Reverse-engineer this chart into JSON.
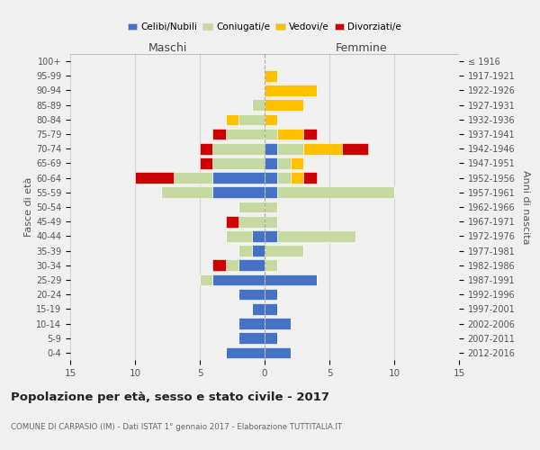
{
  "age_groups": [
    "100+",
    "95-99",
    "90-94",
    "85-89",
    "80-84",
    "75-79",
    "70-74",
    "65-69",
    "60-64",
    "55-59",
    "50-54",
    "45-49",
    "40-44",
    "35-39",
    "30-34",
    "25-29",
    "20-24",
    "15-19",
    "10-14",
    "5-9",
    "0-4"
  ],
  "birth_years": [
    "≤ 1916",
    "1917-1921",
    "1922-1926",
    "1927-1931",
    "1932-1936",
    "1937-1941",
    "1942-1946",
    "1947-1951",
    "1952-1956",
    "1957-1961",
    "1962-1966",
    "1967-1971",
    "1972-1976",
    "1977-1981",
    "1982-1986",
    "1987-1991",
    "1992-1996",
    "1997-2001",
    "2002-2006",
    "2007-2011",
    "2012-2016"
  ],
  "male": {
    "celibi": [
      0,
      0,
      0,
      0,
      0,
      0,
      0,
      0,
      4,
      4,
      0,
      0,
      1,
      1,
      2,
      4,
      2,
      1,
      2,
      2,
      3
    ],
    "coniugati": [
      0,
      0,
      0,
      1,
      2,
      3,
      4,
      4,
      3,
      4,
      2,
      2,
      2,
      1,
      1,
      1,
      0,
      0,
      0,
      0,
      0
    ],
    "vedovi": [
      0,
      0,
      0,
      0,
      1,
      0,
      0,
      0,
      0,
      0,
      0,
      0,
      0,
      0,
      0,
      0,
      0,
      0,
      0,
      0,
      0
    ],
    "divorziati": [
      0,
      0,
      0,
      0,
      0,
      1,
      1,
      1,
      3,
      0,
      0,
      1,
      0,
      0,
      1,
      0,
      0,
      0,
      0,
      0,
      0
    ]
  },
  "female": {
    "nubili": [
      0,
      0,
      0,
      0,
      0,
      0,
      1,
      1,
      1,
      1,
      0,
      0,
      1,
      0,
      0,
      4,
      1,
      1,
      2,
      1,
      2
    ],
    "coniugate": [
      0,
      0,
      0,
      0,
      0,
      1,
      2,
      1,
      1,
      9,
      1,
      1,
      6,
      3,
      1,
      0,
      0,
      0,
      0,
      0,
      0
    ],
    "vedove": [
      0,
      1,
      4,
      3,
      1,
      2,
      3,
      1,
      1,
      0,
      0,
      0,
      0,
      0,
      0,
      0,
      0,
      0,
      0,
      0,
      0
    ],
    "divorziate": [
      0,
      0,
      0,
      0,
      0,
      1,
      2,
      0,
      1,
      0,
      0,
      0,
      0,
      0,
      0,
      0,
      0,
      0,
      0,
      0,
      0
    ]
  },
  "colors": {
    "celibi": "#4472c4",
    "coniugati": "#c6d9a0",
    "vedovi": "#ffc000",
    "divorziati": "#cc0000"
  },
  "xlim": 15,
  "title": "Popolazione per età, sesso e stato civile - 2017",
  "subtitle": "COMUNE DI CARPASIO (IM) - Dati ISTAT 1° gennaio 2017 - Elaborazione TUTTITALIA.IT",
  "ylabel_left": "Fasce di età",
  "ylabel_right": "Anni di nascita",
  "xlabel_left": "Maschi",
  "xlabel_right": "Femmine",
  "background_color": "#f0f0f0"
}
